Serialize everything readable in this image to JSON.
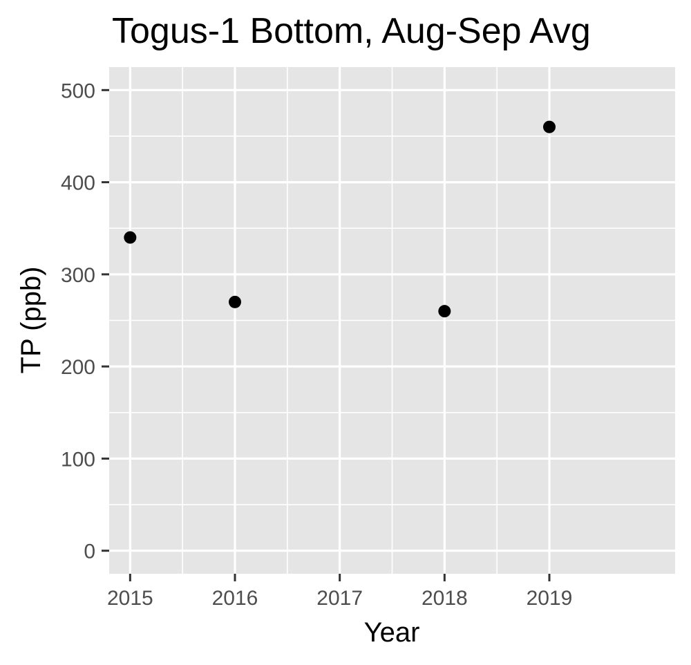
{
  "chart_data": {
    "type": "scatter",
    "title": "Togus-1 Bottom, Aug-Sep Avg",
    "xlabel": "Year",
    "ylabel": "TP (ppb)",
    "x": [
      2015,
      2016,
      2018,
      2019
    ],
    "y": [
      340,
      270,
      260,
      460
    ],
    "x_ticks": [
      "2015",
      "2016",
      "2017",
      "2018",
      "2019"
    ],
    "y_ticks": [
      "0",
      "100",
      "200",
      "300",
      "400",
      "500"
    ],
    "xlim": [
      2014.8,
      2020.2
    ],
    "ylim": [
      -25,
      525
    ],
    "grid": true,
    "legend": "none",
    "colors": {
      "panel": "#e5e5e5",
      "grid": "#ffffff",
      "point": "#000000",
      "tick": "#333333"
    }
  }
}
